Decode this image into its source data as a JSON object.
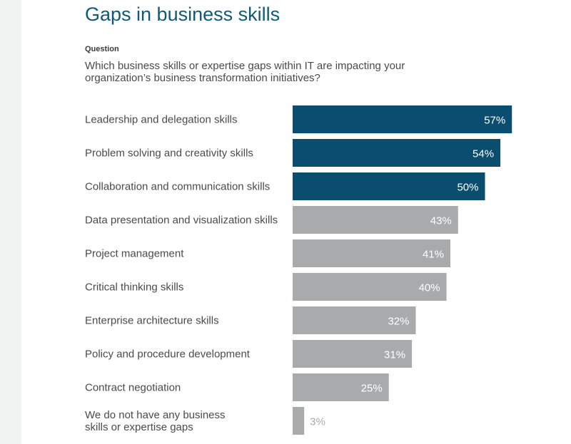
{
  "title": "Gaps in business skills",
  "question_label": "Question",
  "question_text": "Which business skills or expertise gaps within IT are impacting your organization’s business transformation initiatives?",
  "colors": {
    "highlight": "#0b4d6e",
    "muted": "#a9aaac",
    "title": "#0f5a78"
  },
  "chart_data": {
    "type": "bar",
    "orientation": "horizontal",
    "title": "",
    "xlabel": "",
    "ylabel": "",
    "xlim": [
      0,
      100
    ],
    "categories": [
      "Leadership and delegation skills",
      "Problem solving and creativity skills",
      "Collaboration and communication skills",
      "Data presentation and visualization skills",
      "Project management",
      "Critical thinking skills",
      "Enterprise architecture skills",
      "Policy and procedure development",
      "Contract negotiation",
      "We do not have any business skills or expertise gaps"
    ],
    "category_lines": [
      [
        "Leadership and delegation skills"
      ],
      [
        "Problem solving and creativity skills"
      ],
      [
        "Collaboration and communication skills"
      ],
      [
        "Data presentation and visualization skills"
      ],
      [
        "Project management"
      ],
      [
        "Critical thinking skills"
      ],
      [
        "Enterprise architecture skills"
      ],
      [
        "Policy and procedure development"
      ],
      [
        "Contract negotiation"
      ],
      [
        "We do not have any business",
        "skills or expertise gaps"
      ]
    ],
    "values": [
      57,
      54,
      50,
      43,
      41,
      40,
      32,
      31,
      25,
      3
    ],
    "value_labels": [
      "57%",
      "54%",
      "50%",
      "43%",
      "41%",
      "40%",
      "32%",
      "31%",
      "25%",
      "3%"
    ],
    "highlighted": [
      true,
      true,
      true,
      false,
      false,
      false,
      false,
      false,
      false,
      false
    ],
    "grid": false,
    "legend": "none"
  }
}
